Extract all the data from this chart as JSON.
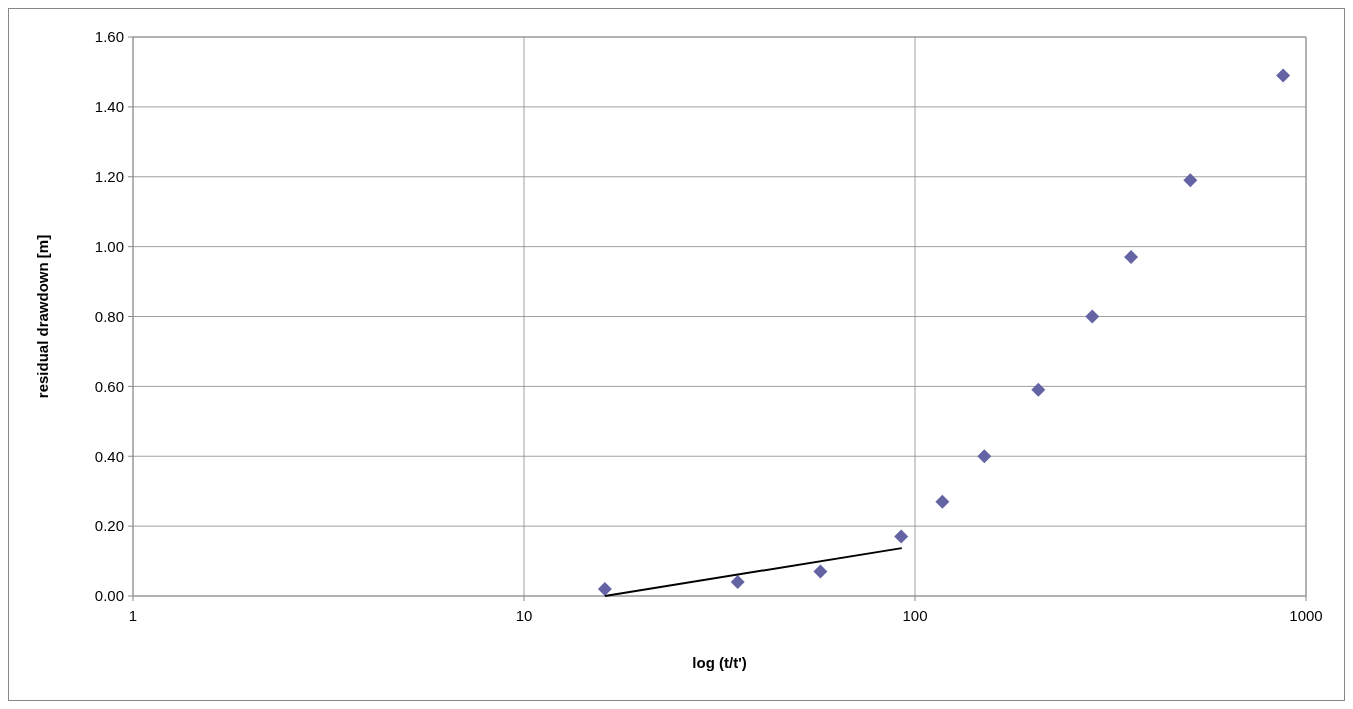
{
  "chart_data": {
    "type": "scatter",
    "xlabel": "log (t/t')",
    "ylabel": "residual drawdown [m]",
    "log": "x",
    "grid": true,
    "marker": "diamond",
    "xlim": [
      1,
      1000
    ],
    "xticks": [
      1,
      10,
      100,
      1000
    ],
    "ylim": [
      0,
      1.6
    ],
    "yticks": [
      {
        "value": 0,
        "label": "0.00"
      },
      {
        "value": 0.2,
        "label": "0.20"
      },
      {
        "value": 0.4,
        "label": "0.40"
      },
      {
        "value": 0.6,
        "label": "0.60"
      },
      {
        "value": 0.8,
        "label": "0.80"
      },
      {
        "value": 1,
        "label": "1.00"
      },
      {
        "value": 1.2,
        "label": "1.20"
      },
      {
        "value": 1.4,
        "label": "1.40"
      },
      {
        "value": 1.6,
        "label": "1.60"
      }
    ],
    "series": [
      {
        "color": "#6464a4",
        "x": [
          16.1,
          35.2,
          57.3,
          92.2,
          117.5,
          150.4,
          206.7,
          284,
          357,
          506,
          874
        ],
        "values": [
          0.02,
          0.04,
          0.07,
          0.17,
          0.27,
          0.4,
          0.59,
          0.8,
          0.97,
          1.19,
          1.49
        ]
      },
      {
        "type": "line",
        "color": "#000000",
        "marker": "none",
        "line_style": "solid",
        "x": [
          16.1,
          92.5
        ],
        "values": [
          0,
          0.137
        ]
      }
    ]
  }
}
